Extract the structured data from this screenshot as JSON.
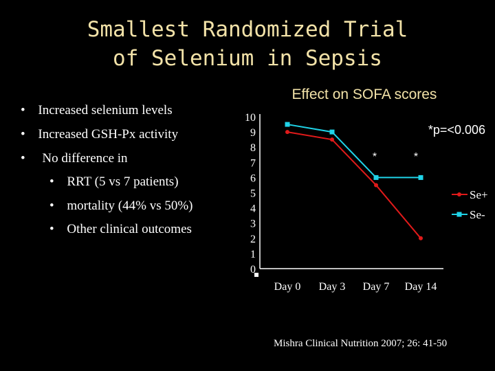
{
  "slide": {
    "title_line1": "Smallest Randomized Trial",
    "title_line2": "of Selenium in Sepsis",
    "citation": "Mishra Clinical Nutrition 2007; 26: 41-50"
  },
  "bullets": [
    {
      "marker": "•",
      "text": "Increased selenium levels"
    },
    {
      "marker": "•",
      "text": "Increased GSH-Px activity"
    },
    {
      "marker": "•",
      "text": "No difference in"
    },
    {
      "marker": "•",
      "text": "RRT  (5 vs 7 patients)"
    },
    {
      "marker": "•",
      "text": "mortality (44% vs 50%)"
    },
    {
      "marker": "•",
      "text": "Other clinical outcomes"
    }
  ],
  "colors": {
    "se_plus": "#e01a1a",
    "se_minus": "#1fd3e8",
    "title": "#f2e2a8",
    "background": "#000000"
  },
  "chart_data": {
    "type": "line",
    "title": "Effect on SOFA scores",
    "categories": [
      "Day 0",
      "Day 3",
      "Day 7",
      "Day 14"
    ],
    "series": [
      {
        "name": "Se+",
        "values": [
          9,
          8.5,
          5.5,
          2
        ]
      },
      {
        "name": "Se-",
        "values": [
          9.5,
          9,
          6,
          6
        ]
      }
    ],
    "ylim": [
      0,
      10
    ],
    "yticks": [
      "0",
      "1",
      "2",
      "3",
      "4",
      "5",
      "6",
      "7",
      "8",
      "9",
      "10"
    ],
    "annotations": [
      {
        "text": "*p=<0.006"
      },
      {
        "text": "*",
        "category": "Day 7"
      },
      {
        "text": "*",
        "category": "Day 14"
      }
    ],
    "legend_position": "right",
    "grid": false
  }
}
